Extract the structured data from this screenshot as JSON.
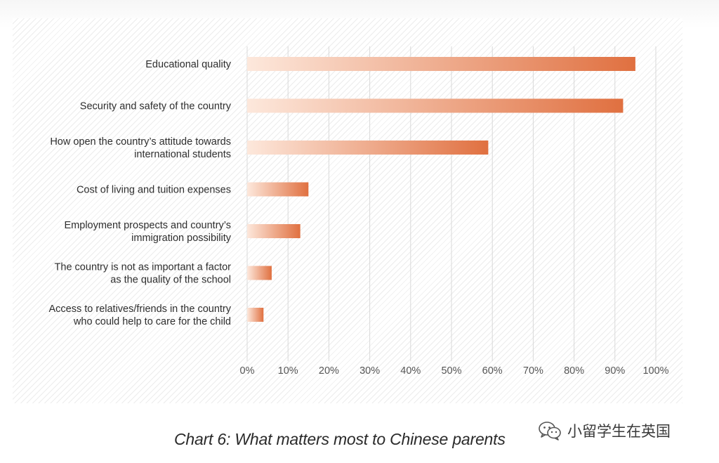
{
  "chart_data": {
    "type": "bar",
    "orientation": "horizontal",
    "categories": [
      [
        "Educational quality"
      ],
      [
        "Security and safety of the country"
      ],
      [
        "How open the country’s attitude towards",
        "international students"
      ],
      [
        "Cost of living and tuition expenses"
      ],
      [
        "Employment prospects and country’s",
        "immigration possibility"
      ],
      [
        "The country is not as important a factor",
        "as the quality of the school"
      ],
      [
        "Access to relatives/friends in the country",
        "who could help to care for the child"
      ]
    ],
    "values": [
      95,
      92,
      59,
      15,
      13,
      6,
      4
    ],
    "xlim": [
      0,
      100
    ],
    "xticks": [
      "0%",
      "10%",
      "20%",
      "30%",
      "40%",
      "50%",
      "60%",
      "70%",
      "80%",
      "90%",
      "100%"
    ],
    "grid": "vertical",
    "colors": {
      "bar_start": "#fde8dc",
      "bar_end": "#e07040",
      "grid": "#d8d8d8"
    }
  },
  "caption": "Chart 6: What matters most to Chinese parents",
  "watermark": {
    "icon": "wechat-icon",
    "text": "小留学生在英国"
  }
}
